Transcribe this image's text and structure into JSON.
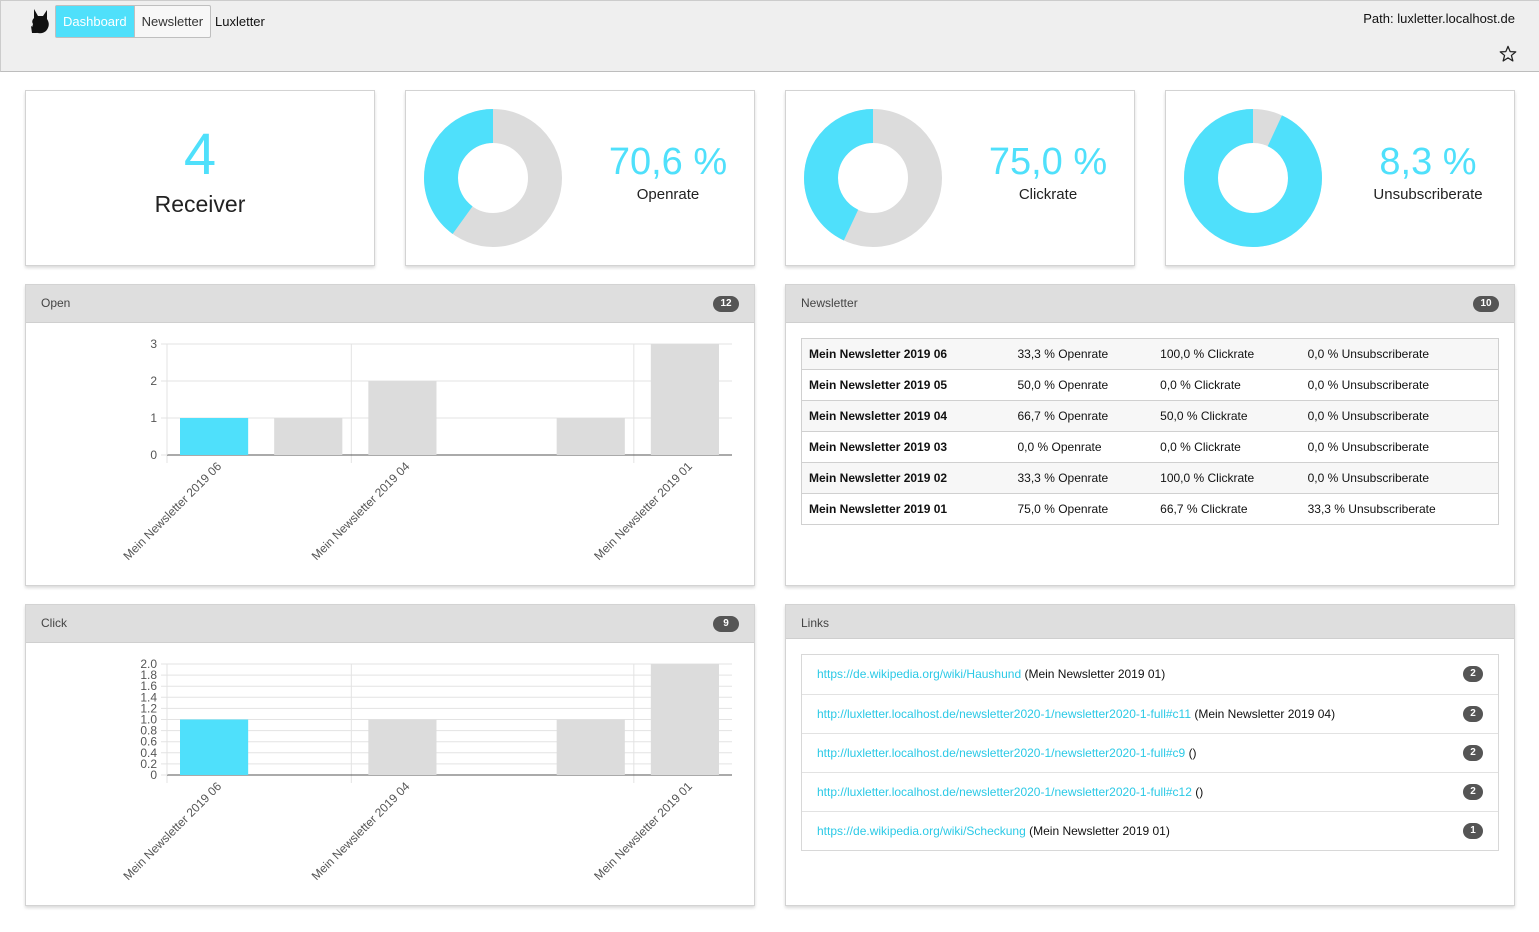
{
  "header": {
    "nav": [
      {
        "label": "Dashboard",
        "active": true
      },
      {
        "label": "Newsletter",
        "active": false
      }
    ],
    "app_title": "Luxletter",
    "path": "Path: luxletter.localhost.de",
    "icons": [
      "cat-logo-icon",
      "star-icon"
    ]
  },
  "stats": {
    "receiver": {
      "value": "4",
      "label": "Receiver"
    },
    "openrate": {
      "value": "70,6 %",
      "label": "Openrate",
      "fraction": 0.4
    },
    "clickrate": {
      "value": "75,0 %",
      "label": "Clickrate",
      "fraction": 0.43
    },
    "unsubscriberate": {
      "value": "8,3 %",
      "label": "Unsubscriberate",
      "fraction": 0.93
    }
  },
  "colors": {
    "accent": "#4fe0fb",
    "neutral": "#dcdcdc"
  },
  "open_panel": {
    "title": "Open",
    "count": "12"
  },
  "click_panel": {
    "title": "Click",
    "count": "9"
  },
  "newsletter_panel": {
    "title": "Newsletter",
    "count": "10",
    "rows": [
      {
        "name": "Mein Newsletter 2019 06",
        "open": "33,3 % Openrate",
        "click": "100,0 % Clickrate",
        "unsub": "0,0 % Unsubscriberate"
      },
      {
        "name": "Mein Newsletter 2019 05",
        "open": "50,0 % Openrate",
        "click": "0,0 % Clickrate",
        "unsub": "0,0 % Unsubscriberate"
      },
      {
        "name": "Mein Newsletter 2019 04",
        "open": "66,7 % Openrate",
        "click": "50,0 % Clickrate",
        "unsub": "0,0 % Unsubscriberate"
      },
      {
        "name": "Mein Newsletter 2019 03",
        "open": "0,0 % Openrate",
        "click": "0,0 % Clickrate",
        "unsub": "0,0 % Unsubscriberate"
      },
      {
        "name": "Mein Newsletter 2019 02",
        "open": "33,3 % Openrate",
        "click": "100,0 % Clickrate",
        "unsub": "0,0 % Unsubscriberate"
      },
      {
        "name": "Mein Newsletter 2019 01",
        "open": "75,0 % Openrate",
        "click": "66,7 % Clickrate",
        "unsub": "33,3 % Unsubscriberate"
      }
    ]
  },
  "links_panel": {
    "title": "Links",
    "rows": [
      {
        "url": "https://de.wikipedia.org/wiki/Haushund",
        "context": "(Mein Newsletter 2019 01)",
        "count": "2"
      },
      {
        "url": "http://luxletter.localhost.de/newsletter2020-1/newsletter2020-1-full#c11",
        "context": "(Mein Newsletter 2019 04)",
        "count": "2"
      },
      {
        "url": "http://luxletter.localhost.de/newsletter2020-1/newsletter2020-1-full#c9",
        "context": "()",
        "count": "2"
      },
      {
        "url": "http://luxletter.localhost.de/newsletter2020-1/newsletter2020-1-full#c12",
        "context": "()",
        "count": "2"
      },
      {
        "url": "https://de.wikipedia.org/wiki/Scheckung",
        "context": "(Mein Newsletter 2019 01)",
        "count": "1"
      }
    ]
  },
  "chart_data": [
    {
      "type": "bar",
      "categories": [
        "Mein Newsletter 2019 06",
        "Mein Newsletter 2019 05",
        "Mein Newsletter 2019 04",
        "Mein Newsletter 2019 03",
        "Mein Newsletter 2019 02",
        "Mein Newsletter 2019 01"
      ],
      "x_tick_labels": [
        "Mein Newsletter 2019 06",
        "Mein Newsletter 2019 04",
        "Mein Newsletter 2019 01"
      ],
      "values": [
        1,
        1,
        2,
        0,
        1,
        3
      ],
      "highlight_index": 0,
      "ylim": [
        0,
        3
      ],
      "yticks": [
        "0",
        "1",
        "2",
        "3"
      ],
      "grid": true
    },
    {
      "type": "bar",
      "categories": [
        "Mein Newsletter 2019 06",
        "Mein Newsletter 2019 05",
        "Mein Newsletter 2019 04",
        "Mein Newsletter 2019 03",
        "Mein Newsletter 2019 02",
        "Mein Newsletter 2019 01"
      ],
      "x_tick_labels": [
        "Mein Newsletter 2019 06",
        "Mein Newsletter 2019 04",
        "Mein Newsletter 2019 01"
      ],
      "values": [
        1,
        0,
        1,
        0,
        1,
        2
      ],
      "highlight_index": 0,
      "ylim": [
        0,
        2
      ],
      "yticks": [
        "0",
        "0.2",
        "0.4",
        "0.6",
        "0.8",
        "1.0",
        "1.2",
        "1.4",
        "1.6",
        "1.8",
        "2.0"
      ],
      "grid": true
    }
  ]
}
